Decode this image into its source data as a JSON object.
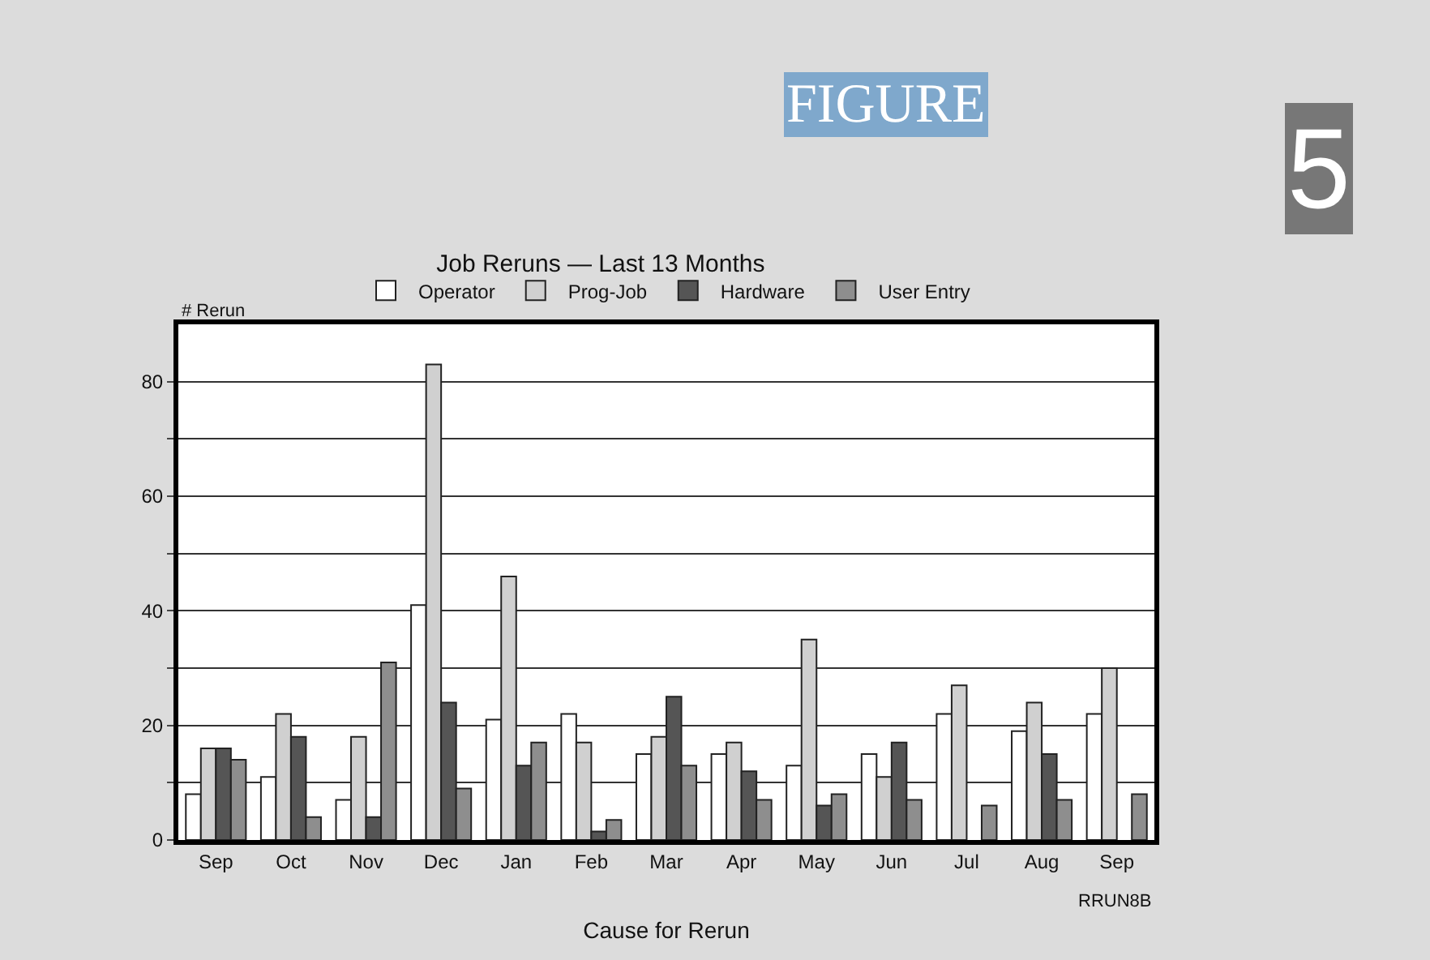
{
  "chart_data": {
    "type": "bar",
    "title": "Job Reruns — Last 13 Months",
    "xlabel": "Cause for Rerun",
    "ylabel": "# Rerun",
    "annotations": [
      "FIGURE",
      "5",
      "RRUN8B"
    ],
    "categories": [
      "Sep",
      "Oct",
      "Nov",
      "Dec",
      "Jan",
      "Feb",
      "Mar",
      "Apr",
      "May",
      "Jun",
      "Jul",
      "Aug",
      "Sep"
    ],
    "series": [
      {
        "name": "Operator",
        "color": "#ffffff",
        "values": [
          8,
          11,
          7,
          41,
          21,
          22,
          15,
          15,
          13,
          15,
          22,
          19,
          22
        ]
      },
      {
        "name": "Prog-Job",
        "color": "#d0d0d0",
        "values": [
          16,
          22,
          18,
          83,
          46,
          17,
          18,
          17,
          35,
          11,
          27,
          24,
          30
        ]
      },
      {
        "name": "Hardware",
        "color": "#555555",
        "values": [
          16,
          18,
          4,
          24,
          13,
          1.5,
          25,
          12,
          6,
          17,
          null,
          15,
          null
        ]
      },
      {
        "name": "User Entry",
        "color": "#8e8e8e",
        "values": [
          14,
          4,
          31,
          9,
          17,
          3.5,
          13,
          7,
          8,
          7,
          6,
          7,
          8
        ]
      }
    ],
    "ylim": [
      0,
      90
    ],
    "yticks": [
      0,
      {
        "value": 10,
        "label": null
      },
      20,
      {
        "value": 30,
        "label": null
      },
      40,
      {
        "value": 50,
        "label": null
      },
      60,
      {
        "value": 70,
        "label": null
      },
      80
    ],
    "grid": "y",
    "legend": "top"
  }
}
